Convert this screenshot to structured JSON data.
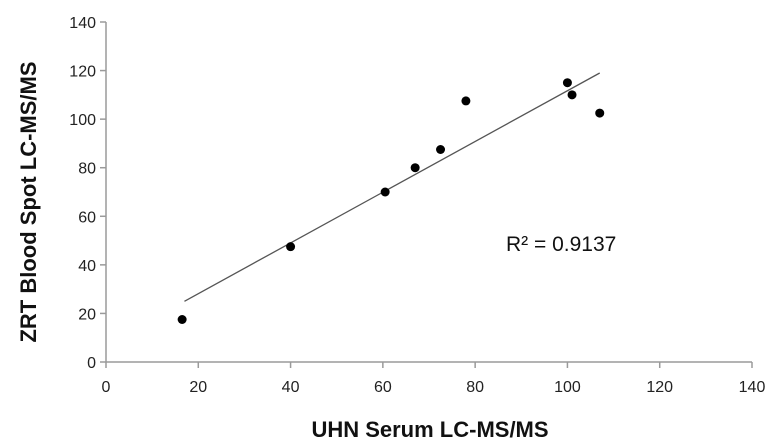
{
  "chart_data": {
    "type": "scatter",
    "title": "",
    "xlabel": "UHN Serum LC-MS/MS",
    "ylabel": "ZRT Blood Spot LC-MS/MS",
    "xlim": [
      0,
      140
    ],
    "ylim": [
      0,
      140
    ],
    "xticks": [
      0,
      20,
      40,
      60,
      80,
      100,
      120,
      140
    ],
    "yticks": [
      0,
      20,
      40,
      60,
      80,
      100,
      120,
      140
    ],
    "grid": false,
    "series": [
      {
        "points": [
          {
            "x": 16.5,
            "y": 17.5
          },
          {
            "x": 40,
            "y": 47.5
          },
          {
            "x": 60.5,
            "y": 70
          },
          {
            "x": 67,
            "y": 80
          },
          {
            "x": 72.5,
            "y": 87.5
          },
          {
            "x": 78,
            "y": 107.5
          },
          {
            "x": 100,
            "y": 115
          },
          {
            "x": 101,
            "y": 110
          },
          {
            "x": 107,
            "y": 102.5
          }
        ],
        "color": "#000000"
      }
    ],
    "trendline": {
      "x": [
        17,
        107
      ],
      "y": [
        25,
        119
      ],
      "color": "#555555"
    },
    "annotation": "R² = 0.9137"
  }
}
